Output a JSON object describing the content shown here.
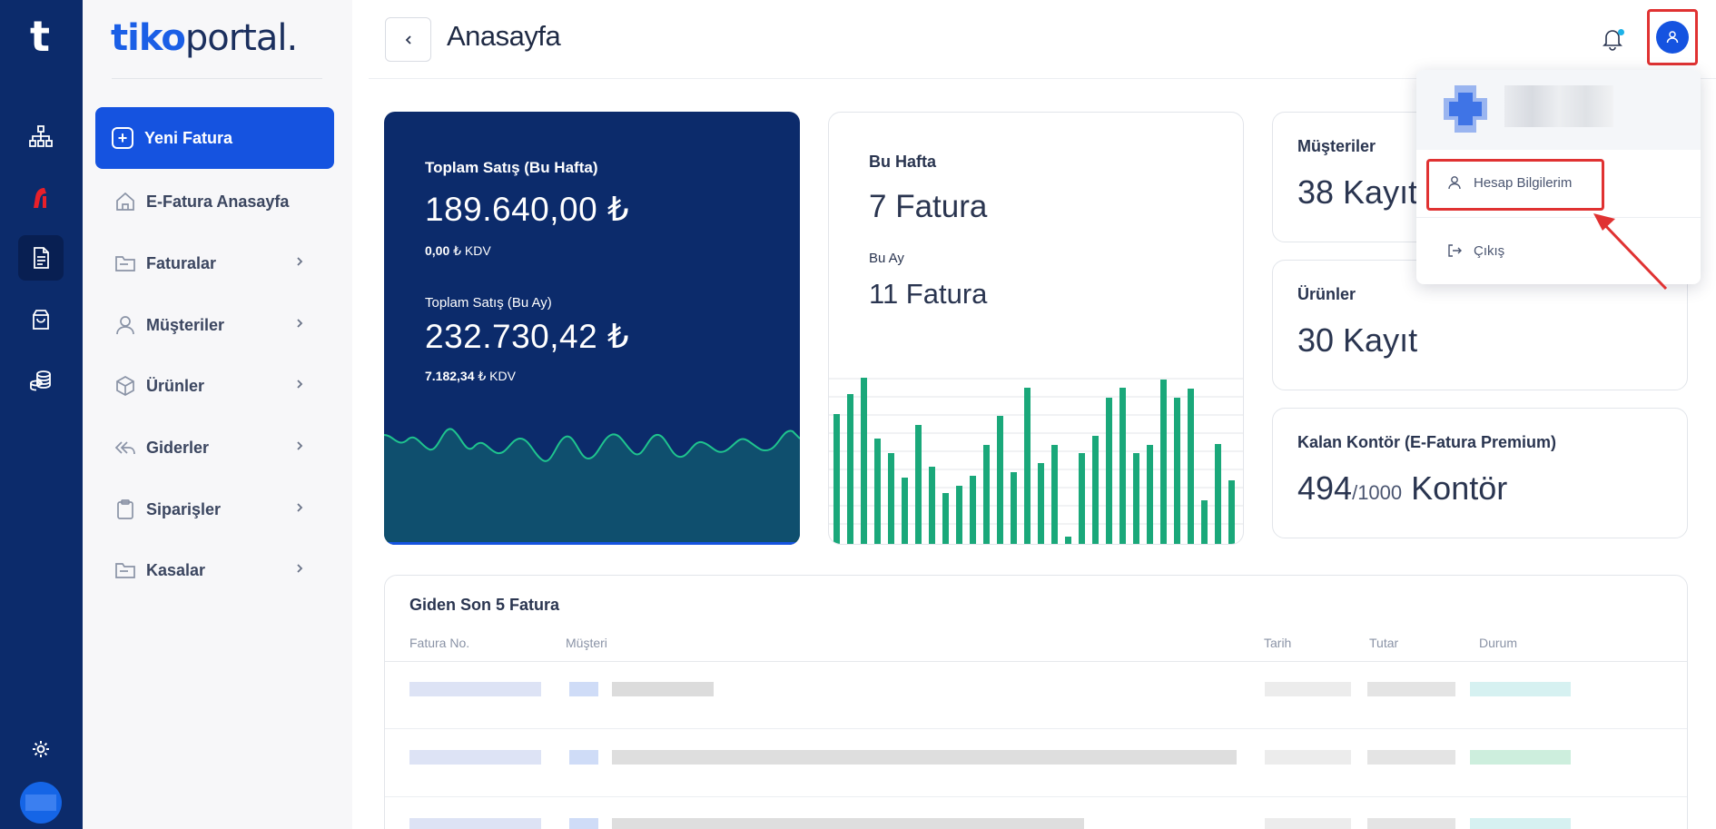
{
  "rail": {
    "logo": "t",
    "items": [
      "sitemap-icon",
      "efatura-icon",
      "document-icon",
      "shopping-bag-icon",
      "coins-icon"
    ],
    "settings_icon": "gear-icon"
  },
  "sidebar": {
    "brand_bold": "tiko",
    "brand_light": "portal.",
    "new_invoice": "Yeni Fatura",
    "items": [
      {
        "label": "E-Fatura Anasayfa",
        "icon": "home-icon"
      },
      {
        "label": "Faturalar",
        "icon": "folder-icon"
      },
      {
        "label": "Müşteriler",
        "icon": "user-icon"
      },
      {
        "label": "Ürünler",
        "icon": "box-icon"
      },
      {
        "label": "Giderler",
        "icon": "reply-all-icon"
      },
      {
        "label": "Siparişler",
        "icon": "clipboard-icon"
      },
      {
        "label": "Kasalar",
        "icon": "folder-icon"
      }
    ]
  },
  "header": {
    "title": "Anasayfa"
  },
  "sales": {
    "week_label": "Toplam Satış (Bu Hafta)",
    "week_amount": "189.640,00 ₺",
    "week_kdv_value": "0,00",
    "week_kdv_suffix": " ₺ KDV",
    "month_label": "Toplam Satış (Bu Ay)",
    "month_amount": "232.730,42 ₺",
    "month_kdv_value": "7.182,34",
    "month_kdv_suffix": " ₺ KDV"
  },
  "invoices": {
    "week_label": "Bu Hafta",
    "week_value": "7 Fatura",
    "month_label": "Bu Ay",
    "month_value": "11 Fatura"
  },
  "stats": {
    "customers_label": "Müşteriler",
    "customers_value": "38 Kayıt",
    "products_label": "Ürünler",
    "products_value": "30 Kayıt",
    "credits_label": "Kalan Kontör (E-Fatura Premium)",
    "credits_used": "494",
    "credits_total": "/1000",
    "credits_unit": "Kontör"
  },
  "dropdown": {
    "account": "Hesap Bilgilerim",
    "logout": "Çıkış"
  },
  "table": {
    "title": "Giden Son 5 Fatura",
    "columns": [
      "Fatura No.",
      "Müşteri",
      "Tarih",
      "Tutar",
      "Durum"
    ]
  },
  "colors": {
    "navy": "#0c2b6b",
    "primary": "#1553e0",
    "bar_green": "#1aa87a",
    "wave_fill": "#0f4f6e",
    "wave_line": "#1fc48e",
    "annotation_red": "#e03232"
  }
}
